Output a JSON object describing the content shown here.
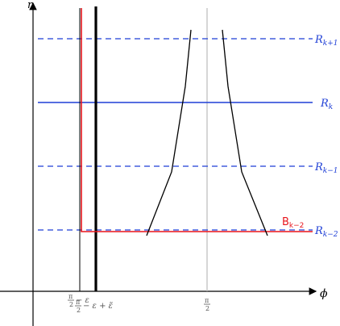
{
  "axes": {
    "x_label": "ϕ",
    "y_label": "r"
  },
  "levels": [
    {
      "name": "R",
      "sub": "k+1",
      "style": "dashed"
    },
    {
      "name": "R",
      "sub": "k",
      "style": "solid"
    },
    {
      "name": "R",
      "sub": "k−1",
      "style": "dashed"
    },
    {
      "name": "R",
      "sub": "k−2",
      "style": "dashed"
    }
  ],
  "boundary": {
    "name": "B",
    "sub": "k−2"
  },
  "ticks": {
    "eps": {
      "num": "π",
      "den": "2",
      "rest": "− ε"
    },
    "eps_tilde": {
      "num": "π",
      "den": "2",
      "rest": "− ε + ε̃"
    },
    "pi_half": {
      "num": "π",
      "den": "2"
    }
  },
  "colors": {
    "levels": "#1f3fd6",
    "boundary": "#e8141c",
    "axes": "#000000",
    "guide": "#bbbbbb"
  }
}
